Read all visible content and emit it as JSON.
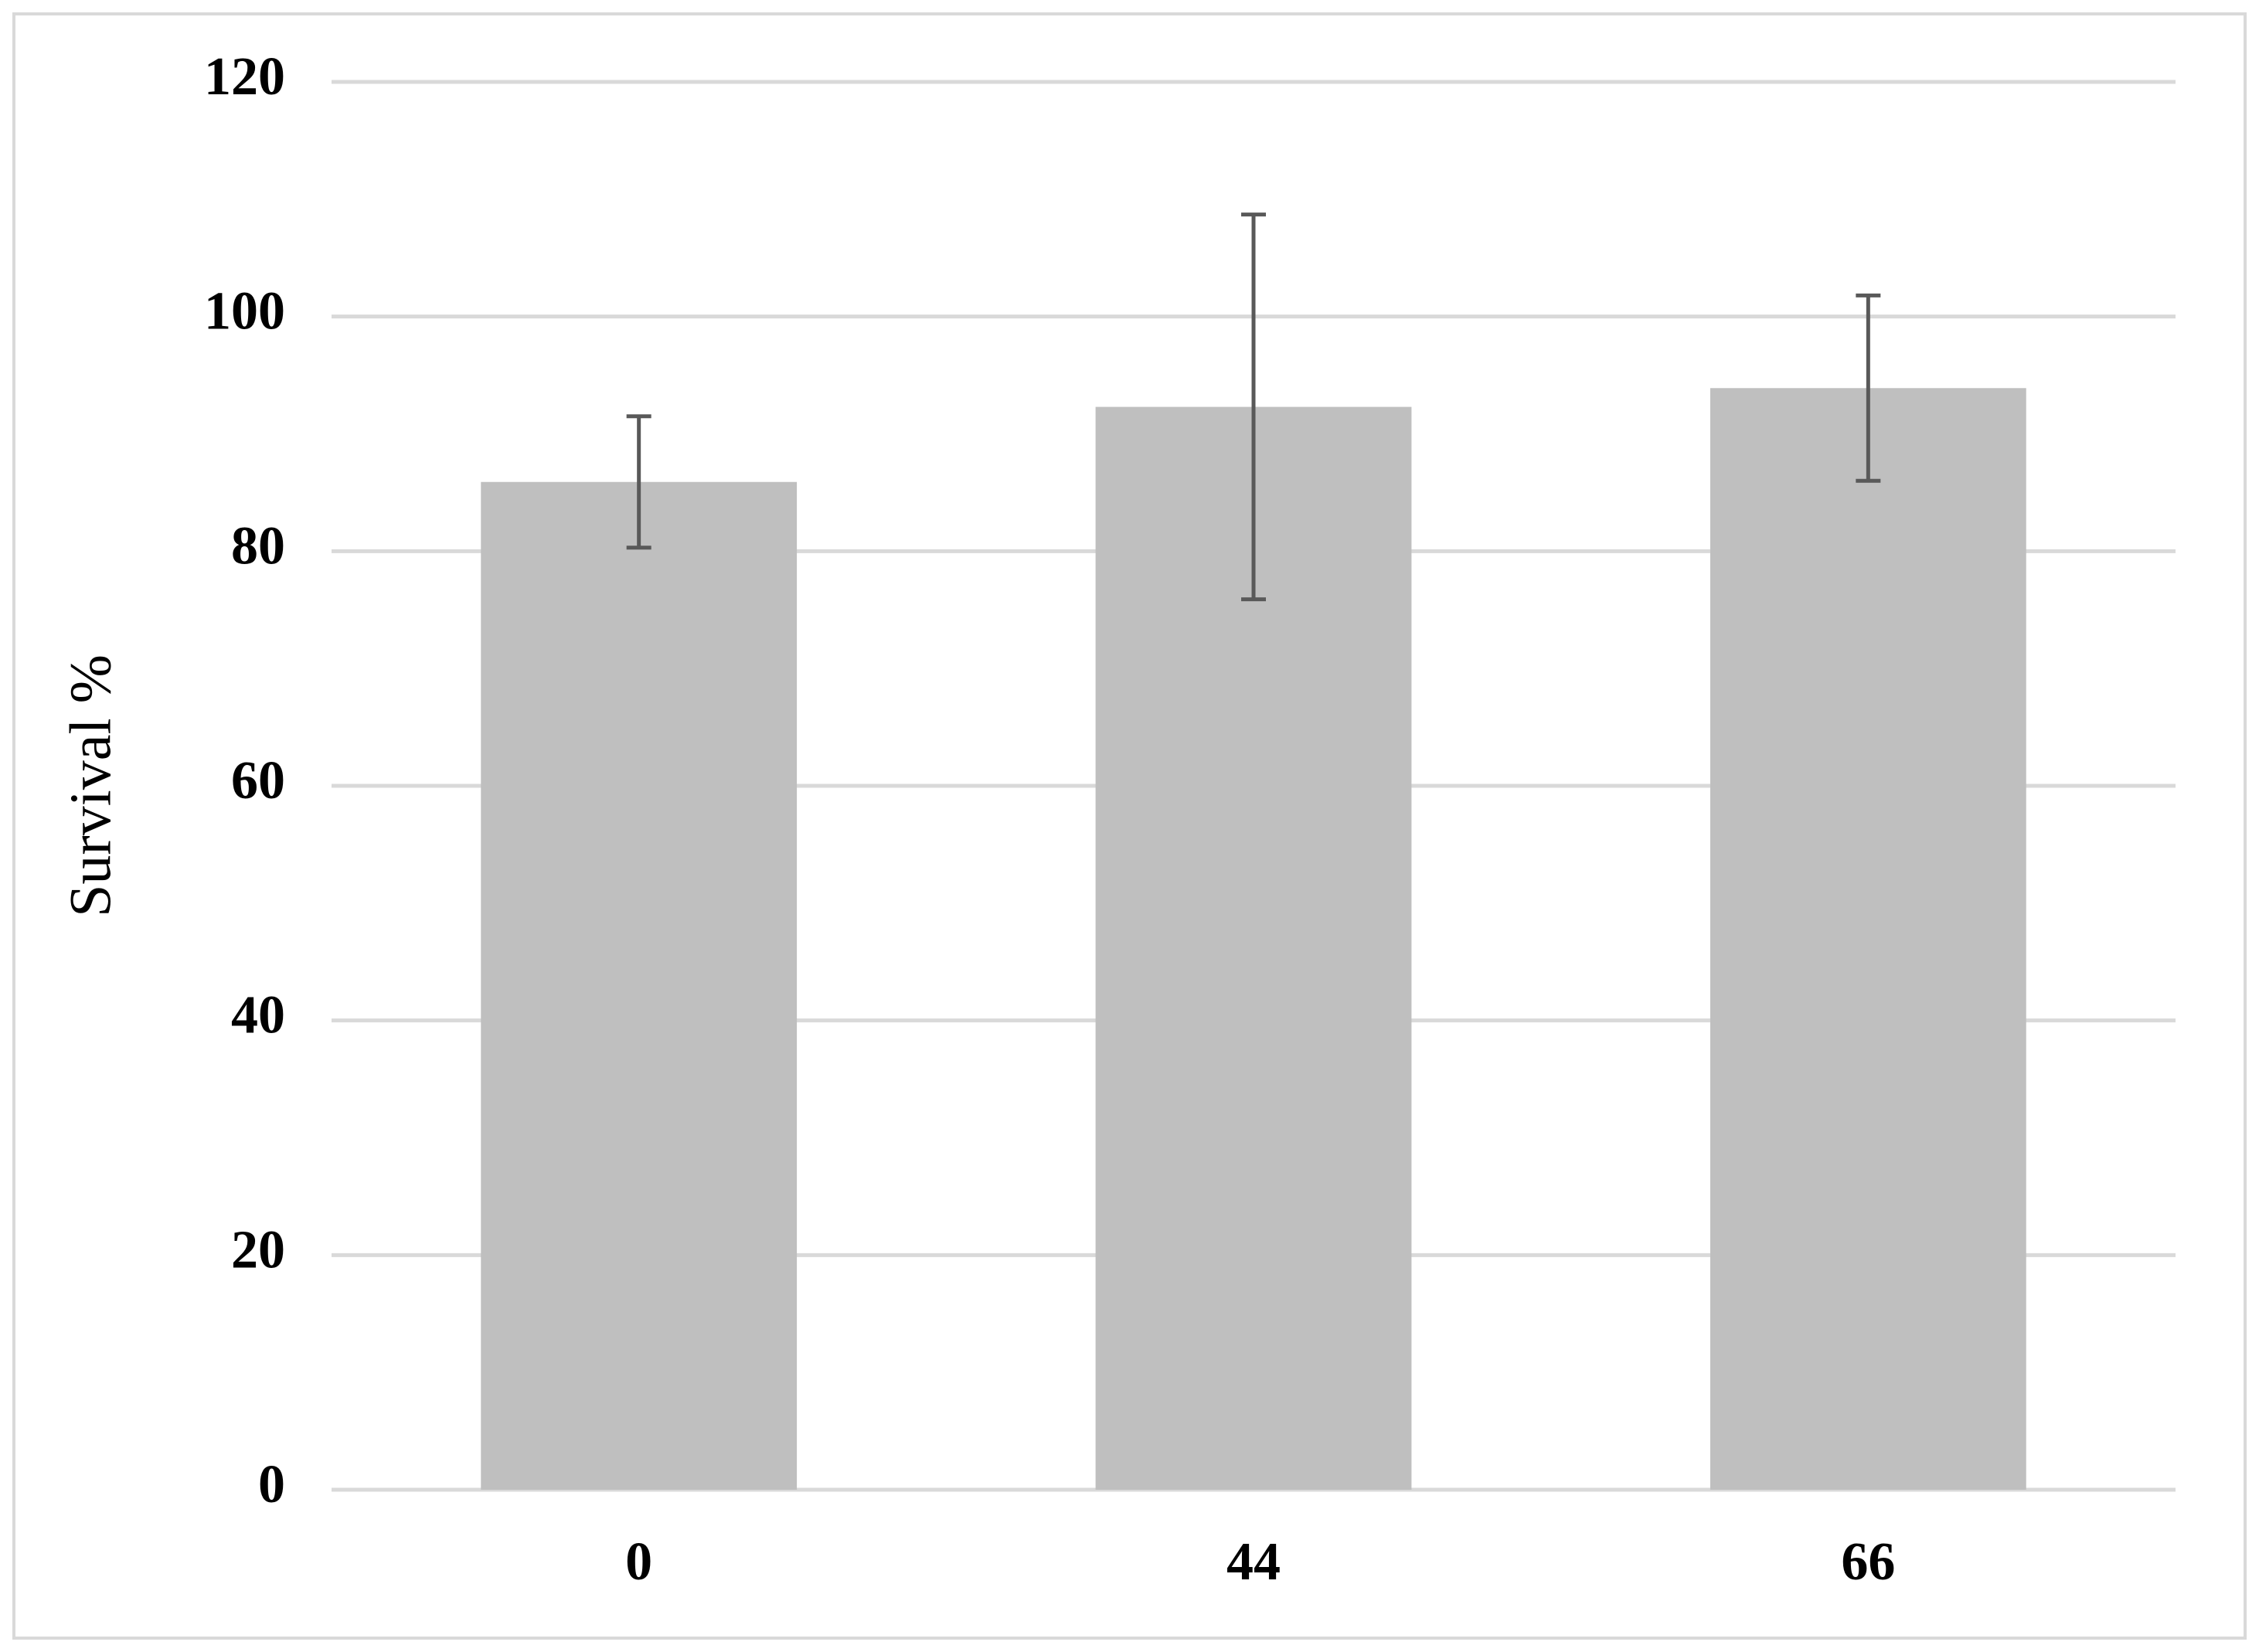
{
  "chart_data": {
    "type": "bar",
    "y_label": "Survival %",
    "categories": [
      "0",
      "44",
      "66"
    ],
    "values": [
      85.9,
      92.3,
      93.9
    ],
    "errors": [
      5.6,
      16.4,
      7.9
    ],
    "color": "#bfbfbf",
    "error_color": "#595959",
    "ylim": [
      0,
      120
    ],
    "yticks": [
      0,
      20,
      40,
      60,
      80,
      100,
      120
    ],
    "grid": true
  }
}
